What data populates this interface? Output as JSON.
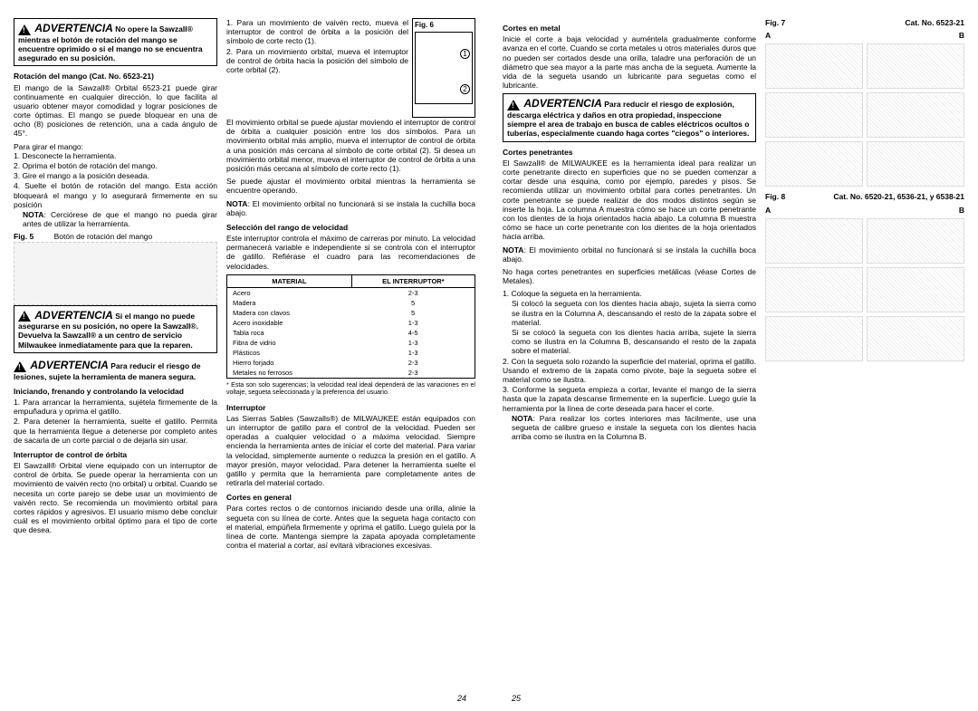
{
  "warnings": {
    "w1_title": "ADVERTENCIA",
    "w1_body": " No opere la Sawzall® mientras el botón de rotación del mango se encuentre oprimido o si el mango no se encuentra asegurado en su posición.",
    "w2_title": "ADVERTENCIA",
    "w2_body": " Si el mango no puede asegurarse en su posición, no opere la Sawzall®. Devuelva la Sawzall® a un centro de servicio Milwaukee inmediatamente para que la reparen.",
    "w3_title": "ADVERTENCIA",
    "w3_body": " Para reducir el riesgo de lesiones, sujete la herramienta de manera segura.",
    "w4_title": "ADVERTENCIA",
    "w4_body": " Para reducir el riesgo de explosión, descarga eléctrica y daños en otra propiedad, inspeccione siempre el area de trabajo en busca de cables eléctricos ocultos o tuberías, especialmente cuando haga cortes \"ciegos\" o interiores."
  },
  "sections": {
    "rotacion_title": "Rotación del mango  (Cat. No. 6523-21)",
    "rotacion_body": "El mango de la Sawzall® Orbital 6523-21 puede girar continuamente en cualquier dirección, lo que facilita al usuario obtener mayor comodidad y lograr posiciones de corte óptimas. El mango se puede bloquear en una de ocho (8) posiciones de retención, una a cada ángulo de 45°.",
    "girar_intro": "Para girar el mango:",
    "girar_1": "1. Desconecte la herramienta.",
    "girar_2": "2. Oprima el botón de rotación del mango.",
    "girar_3": "3. Gire el mango a la posición deseada.",
    "girar_4": "4. Suelte el botón de rotación del mango. Esta acción bloqueará el mango y lo asegurará firmemente en su posición",
    "girar_nota": "NOTA: Cerciórese de que el mango no pueda girar antes de utilizar la herramienta.",
    "fig5_label": "Fig. 5",
    "fig5_caption": "Botón de rotación del mango",
    "iniciando_title": "Iniciando, frenando y controlando la velocidad",
    "iniciando_1": "1. Para arrancar la herramienta, sujétela firmemente de la empuñadura y oprima el gatillo.",
    "iniciando_2": "2. Para detener la herramienta, suelte el gatillo. Permita que la herramienta llegue a detenerse por completo antes de sacarla de un corte parcial o de dejarla sin usar.",
    "orbita_title": "Interruptor de control de órbita",
    "orbita_body": "El Sawzall® Orbital viene equipado con un interruptor de control de órbita. Se puede operar la herramienta con un movimiento de vaivén recto (no orbital) u orbital. Cuando se necesita un corte parejo se debe usar un movimiento de vaivén recto. Se recomienda un movimiento orbital para cortes rápidos y agresivos. El usuario mismo debe concluir cuál es el movimiento orbital óptimo para el tipo de corte que desea.",
    "orbit_1": "1. Para un movimiento de vaivén recto, mueva el interruptor de control de órbita a la posición del símbolo de corte recto (1).",
    "orbit_2": "2. Para un movimiento orbital, mueva el interruptor de control de órbita hacia la posición del símbolo de corte orbital (2).",
    "orbit_body2": "El movimiento orbital se puede ajustar moviendo el interruptor de control de órbita a cualquier posición entre los dos símbolos. Para un movimiento orbital más amplio, mueva el interruptor de control de órbita a una posición más cercana al símbolo de corte orbital (2). Si desea un movimiento orbital menor, mueva el interruptor de control de órbita a una posición más cercana al símbolo de corte recto (1).",
    "orbit_body3": "Se puede ajustar el movimiento orbital mientras la herramienta se encuentre operando.",
    "orbit_nota": "NOTA: El movimiento orbital no funcionará si se instala la cuchilla boca abajo.",
    "fig6_label": "Fig. 6",
    "rango_title": "Selección del rango de velocidad",
    "rango_body": "Este interruptor controla el máximo de carreras por minuto. La velocidad permanecerá variable e independiente si se controla con el interruptor de gatillo. Refiérase el cuadro para las recomendaciones de velocidades.",
    "table_col1": "MATERIAL",
    "table_col2": "EL INTERRUPTOR*",
    "table_foot": "* Esta son solo sugerencias; la velocidad real ideal dependerá de las variaciones en el voltaje, segueta seleccionada y la preferencia del usuario.",
    "interruptor_title": "Interruptor",
    "interruptor_body": "Las Sierras Sables (Sawzalls®) de MILWAUKEE están equipados con un interruptor de gatillo para el control de la velocidad. Pueden ser operadas a cualquier velocidad o a máxima velocidad. Siempre encienda la herramienta antes de iniciar el corte del material. Para variar la velocidad, simplemente aumente o reduzca la presión en el gatillo. A mayor presión, mayor velocidad. Para detener la herramienta suelte el gatillo y permita que la herramienta pare completamente antes de retirarla del material cortado.",
    "general_title": "Cortes en general",
    "general_body": "Para cortes rectos o de contornos iniciando desde una orilla, alinie la segueta con su línea de corte. Antes que la segueta haga contacto con el material, empúñela firmemente y oprima el gatillo. Luego guíela por la línea de corte. Mantenga siempre la zapata apoyada completamente contra el material a cortar, así evitará vibraciones excesivas.",
    "metal_title": "Cortes en metal",
    "metal_body": "Inicie el corte a baja velocidad y auméntela gradualmente conforme avanza en el corte. Cuando se corta metales u otros materiales duros que no pueden ser cortados desde una orilla, taladre una perforación de un diámetro que sea mayor a la parte mas ancha de la segueta. Aumente la vida de la segueta usando un lubricante para seguetas como el lubricante.",
    "penetrantes_title": "Cortes penetrantes",
    "penetrantes_body": "El Sawzall® de MILWAUKEE es la herramienta ideal para realizar un corte penetrante directo en superficies que no se pueden comenzar a cortar desde una esquina, como por ejemplo, paredes y pisos. Se recomienda utilizar un movimiento orbital para cortes penetrantes. Un corte penetrante se puede realizar de dos modos distintos según se inserte la hoja. La columna A muestra cómo se hace un corte penetrante con los dientes de la hoja orientados hacia abajo. La columna B muestra cómo se hace un corte penetrante con los dientes de la hoja orientados hacia arriba.",
    "penetrantes_nota": "NOTA: El movimiento orbital no funcionará si se instala la cuchilla boca abajo.",
    "penetrantes_body2": "No haga cortes penetrantes en superficies metálicas (véase Cortes de Metales).",
    "pen_1": "1. Coloque la segueta en la herramienta.",
    "pen_1a": "Si colocó la segueta con los dientes hacia abajo, sujeta la sierra como se ilustra en la Columna A, descansando el resto de la zapata sobre el material.",
    "pen_1b": "Si se colocó la segueta con los dientes hacia arriba, sujete la sierra como se ilustra en la Columna B, descansando el resto de la zapata sobre el material.",
    "pen_2": "2. Con la segueta solo rozando la superficie del material, oprima el gatillo. Usando el extremo de la zapata como pivote, baje la segueta sobre el material como se ilustra.",
    "pen_3": "3. Conforme la segueta empieza a cortar, levante el mango de la sierra hasta que la zapata descanse firmemente en la superficie. Luego guíe la herramienta por la línea de corte deseada para hacer el corte.",
    "pen_nota": "NOTA: Para realizar los cortes interiores mas fácilmente, use una segueta de calibre grueso e instale la segueta con los dientes hacia arriba como se ilustra en la Columna B.",
    "fig7_label": "Fig. 7",
    "fig7_cat": "Cat. No.  6523-21",
    "fig8_label": "Fig. 8",
    "fig8_cat": "Cat. No.  6520-21, 6536-21, y 6538-21"
  },
  "speed_table": [
    {
      "mat": "Acero",
      "sw": "2-3"
    },
    {
      "mat": "Madera",
      "sw": "5"
    },
    {
      "mat": "Madera con clavos",
      "sw": "5"
    },
    {
      "mat": "Acero inoxidable",
      "sw": "1-3"
    },
    {
      "mat": "Tabla roca",
      "sw": "4-5"
    },
    {
      "mat": "Fibra de vidrio",
      "sw": "1-3"
    },
    {
      "mat": "Plásticos",
      "sw": "1-3"
    },
    {
      "mat": "Hierro forjado",
      "sw": "2-3"
    },
    {
      "mat": "Metales no ferrosos",
      "sw": "2-3"
    }
  ],
  "page_left": "24",
  "page_right": "25",
  "col_a": "A",
  "col_b": "B"
}
